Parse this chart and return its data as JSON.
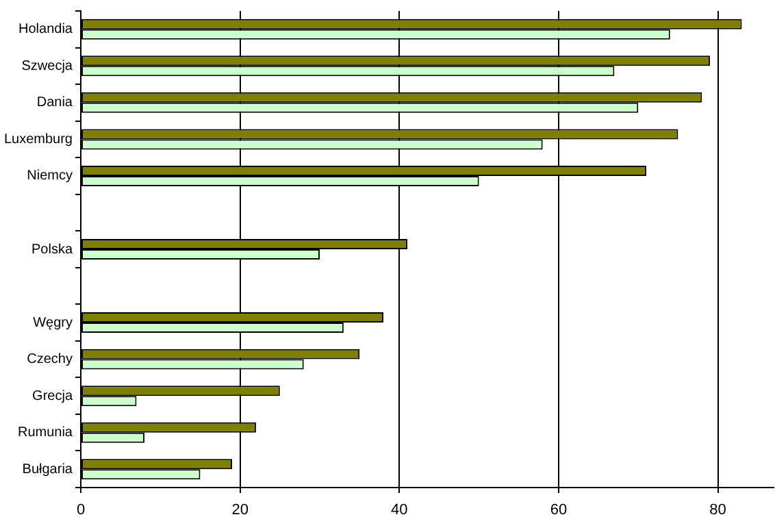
{
  "chart_data": {
    "type": "bar",
    "orientation": "horizontal",
    "categories": [
      "Holandia",
      "Szwecja",
      "Dania",
      "Luxemburg",
      "Niemcy",
      null,
      "Polska",
      null,
      "Węgry",
      "Czechy",
      "Grecja",
      "Rumunia",
      "Bułgaria"
    ],
    "series": [
      {
        "color": "#808000",
        "values": [
          83,
          79,
          78,
          75,
          71,
          null,
          41,
          null,
          38,
          35,
          25,
          22,
          19
        ]
      },
      {
        "color": "#ccffcc",
        "values": [
          74,
          67,
          70,
          58,
          50,
          null,
          30,
          null,
          33,
          28,
          7,
          8,
          15
        ]
      }
    ],
    "xlim": [
      0,
      87
    ],
    "xticks": [
      0,
      20,
      40,
      60,
      80
    ],
    "grid": "x",
    "legend": false
  }
}
